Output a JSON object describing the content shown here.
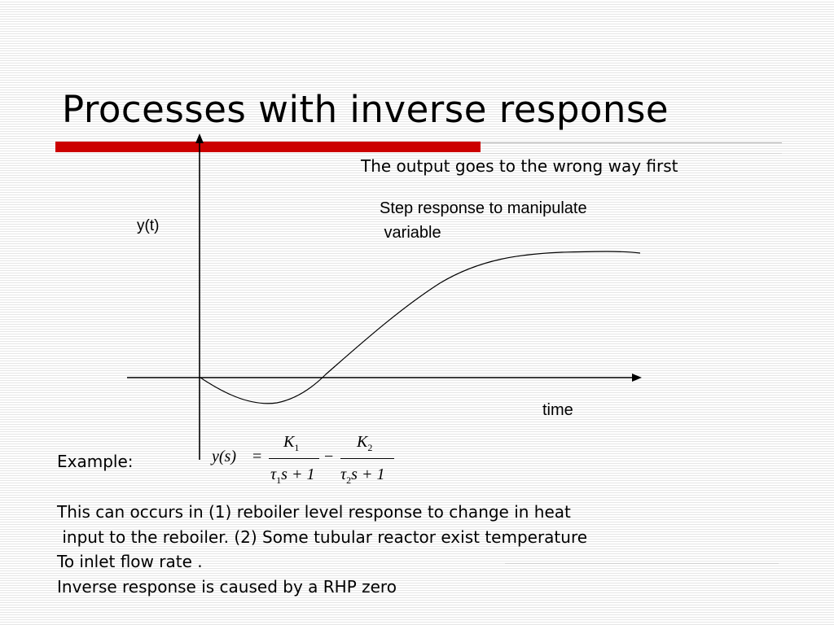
{
  "slide": {
    "title": "Processes with inverse response",
    "note": "The output goes to the wrong way first",
    "caption_line1": "Step response to manipulate",
    "caption_line2": " variable",
    "y_axis_label": "y(t)",
    "x_axis_label": "time",
    "example_label": "Example:",
    "equation": {
      "lhs": "y(s)",
      "equals": "=",
      "num1": "K",
      "num1_sub": "1",
      "den1": "τ",
      "den1_sub": "1",
      "den1_rest": "s + 1",
      "minus": "−",
      "num2": "K",
      "num2_sub": "2",
      "den2": "τ",
      "den2_sub": "2",
      "den2_rest": "s + 1"
    },
    "body_lines": [
      "This can occurs in (1) reboiler level response to change in heat",
      " input to the reboiler. (2) Some tubular reactor exist temperature",
      "To inlet flow rate .",
      "Inverse response is caused by a RHP zero"
    ]
  },
  "colors": {
    "accent_bar": "#cc0000",
    "stripe": "#e6e6e6"
  }
}
